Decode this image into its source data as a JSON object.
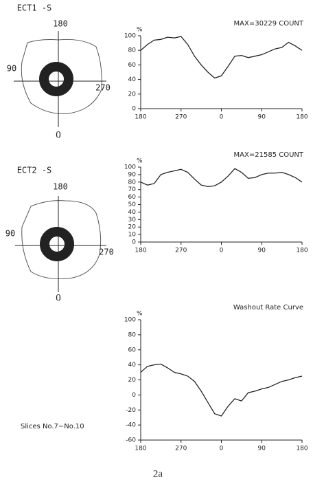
{
  "chart_data": [
    {
      "type": "line",
      "annotation": "MAX=30229 COUNT",
      "ylabel": "%",
      "x": [
        0,
        15,
        30,
        45,
        60,
        75,
        90,
        105,
        120,
        135,
        150,
        165,
        180,
        195,
        210,
        225,
        240,
        255,
        270,
        285,
        300,
        315,
        330,
        345,
        360
      ],
      "series": [
        {
          "color": "#222222",
          "values": [
            80,
            88,
            94,
            95,
            98,
            97,
            99,
            88,
            72,
            60,
            50,
            42,
            45,
            58,
            72,
            73,
            70,
            72,
            74,
            78,
            82,
            84,
            91,
            86,
            80
          ]
        }
      ],
      "xlim": [
        0,
        360
      ],
      "xticks": [
        {
          "value": 0,
          "label": "180"
        },
        {
          "value": 90,
          "label": "270"
        },
        {
          "value": 180,
          "label": "0"
        },
        {
          "value": 270,
          "label": "90"
        },
        {
          "value": 360,
          "label": "180"
        }
      ],
      "ylim": [
        0,
        100
      ],
      "yticks": [
        0,
        20,
        40,
        60,
        80,
        100
      ],
      "grid": false
    },
    {
      "type": "line",
      "annotation": "MAX=21585 COUNT",
      "ylabel": "%",
      "x": [
        0,
        15,
        30,
        45,
        60,
        75,
        90,
        105,
        120,
        135,
        150,
        165,
        180,
        195,
        210,
        225,
        240,
        255,
        270,
        285,
        300,
        315,
        330,
        345,
        360
      ],
      "series": [
        {
          "color": "#222222",
          "values": [
            80,
            76,
            78,
            90,
            93,
            95,
            97,
            93,
            84,
            76,
            74,
            75,
            80,
            88,
            98,
            93,
            85,
            86,
            90,
            92,
            92,
            93,
            90,
            86,
            80
          ]
        }
      ],
      "xlim": [
        0,
        360
      ],
      "xticks": [
        {
          "value": 0,
          "label": "180"
        },
        {
          "value": 90,
          "label": "270"
        },
        {
          "value": 180,
          "label": "0"
        },
        {
          "value": 270,
          "label": "90"
        },
        {
          "value": 360,
          "label": "180"
        }
      ],
      "ylim": [
        0,
        100
      ],
      "yticks": [
        0,
        10,
        20,
        30,
        40,
        50,
        60,
        70,
        80,
        90,
        100
      ],
      "grid": false
    },
    {
      "type": "line",
      "annotation": "Washout Rate Curve",
      "ylabel": "%",
      "x": [
        0,
        15,
        30,
        45,
        60,
        75,
        90,
        105,
        120,
        135,
        150,
        165,
        180,
        195,
        210,
        225,
        240,
        255,
        270,
        285,
        300,
        315,
        330,
        345,
        360
      ],
      "series": [
        {
          "color": "#222222",
          "values": [
            30,
            38,
            40,
            41,
            36,
            30,
            28,
            25,
            18,
            5,
            -10,
            -25,
            -28,
            -15,
            -5,
            -8,
            3,
            5,
            8,
            10,
            14,
            18,
            20,
            23,
            25
          ]
        }
      ],
      "xlim": [
        0,
        360
      ],
      "xticks": [
        {
          "value": 0,
          "label": "180"
        },
        {
          "value": 90,
          "label": "270"
        },
        {
          "value": 180,
          "label": "0"
        },
        {
          "value": 270,
          "label": "90"
        },
        {
          "value": 360,
          "label": "180"
        }
      ],
      "ylim": [
        -60,
        100
      ],
      "yticks": [
        -60,
        -40,
        -20,
        0,
        20,
        40,
        60,
        80,
        100
      ],
      "grid": false
    }
  ],
  "panels": [
    {
      "title": "ECT1 -S",
      "top": "180",
      "left": "90",
      "right": "270",
      "bottom": "0"
    },
    {
      "title": "ECT2 -S",
      "top": "180",
      "left": "90",
      "right": "270",
      "bottom": "0"
    }
  ],
  "note": "Slices No.7−No.10",
  "caption": "2a"
}
